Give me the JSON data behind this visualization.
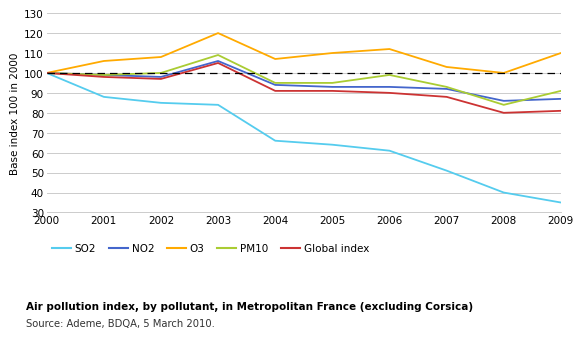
{
  "years": [
    2000,
    2001,
    2002,
    2003,
    2004,
    2005,
    2006,
    2007,
    2008,
    2009
  ],
  "SO2": [
    100,
    88,
    85,
    84,
    66,
    64,
    61,
    51,
    40,
    35
  ],
  "NO2": [
    100,
    99,
    98,
    106,
    94,
    93,
    93,
    92,
    86,
    87
  ],
  "O3": [
    100,
    106,
    108,
    120,
    107,
    110,
    112,
    103,
    100,
    110
  ],
  "PM10": [
    100,
    99,
    100,
    109,
    95,
    95,
    99,
    93,
    84,
    91
  ],
  "Global_index": [
    100,
    98,
    97,
    105,
    91,
    91,
    90,
    88,
    80,
    81
  ],
  "colors": {
    "SO2": "#55CCEE",
    "NO2": "#4466CC",
    "O3": "#FFAA00",
    "PM10": "#AACC33",
    "Global_index": "#CC3333"
  },
  "labels": {
    "SO2": "SO2",
    "NO2": "NO2",
    "O3": "O3",
    "PM10": "PM10",
    "Global_index": "Global index"
  },
  "ylabel": "Base index 100 in 2000",
  "ylim": [
    30,
    130
  ],
  "yticks": [
    30,
    40,
    50,
    60,
    70,
    80,
    90,
    100,
    110,
    120,
    130
  ],
  "xlim": [
    2000,
    2009
  ],
  "title": "Air pollution index, by pollutant, in Metropolitan France (excluding Corsica)",
  "source": "Source: Ademe, BDQA, 5 March 2010.",
  "background_color": "#FFFFFF",
  "grid_color": "#CCCCCC",
  "dashed_line_y": 100,
  "linewidth": 1.3
}
